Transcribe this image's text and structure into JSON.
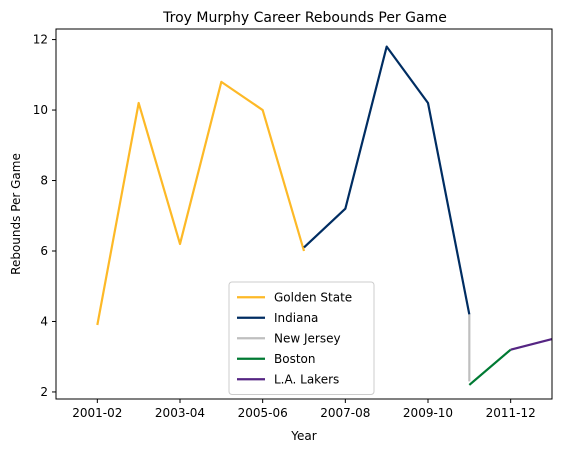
{
  "chart_data": {
    "type": "line",
    "title": "Troy Murphy Career Rebounds Per Game",
    "xlabel": "Year",
    "ylabel": "Rebounds Per Game",
    "x_ticks": [
      "2001-02",
      "2003-04",
      "2005-06",
      "2007-08",
      "2009-10",
      "2011-12"
    ],
    "y_ticks": [
      2,
      4,
      6,
      8,
      10,
      12
    ],
    "xlim": [
      "2000-01",
      "2012-13"
    ],
    "ylim": [
      1.8,
      12.3
    ],
    "grid": false,
    "legend_position": "bottom-center",
    "series": [
      {
        "name": "Golden State",
        "color": "#fdb927",
        "x": [
          "2001-02",
          "2002-03",
          "2003-04",
          "2004-05",
          "2005-06",
          "2006-07"
        ],
        "y": [
          3.9,
          10.2,
          6.2,
          10.8,
          10.0,
          6.0
        ]
      },
      {
        "name": "Indiana",
        "color": "#002d62",
        "x": [
          "2006-07",
          "2007-08",
          "2008-09",
          "2009-10",
          "2010-11"
        ],
        "y": [
          6.1,
          7.2,
          11.8,
          10.2,
          4.2
        ]
      },
      {
        "name": "New Jersey",
        "color": "#bfbfbf",
        "x": [
          "2010-11",
          "2010-11"
        ],
        "y": [
          4.2,
          2.3
        ]
      },
      {
        "name": "Boston",
        "color": "#007a33",
        "x": [
          "2010-11",
          "2011-12"
        ],
        "y": [
          2.2,
          3.2
        ]
      },
      {
        "name": "L.A. Lakers",
        "color": "#552583",
        "x": [
          "2011-12",
          "2012-13"
        ],
        "y": [
          3.2,
          3.5
        ]
      }
    ]
  }
}
